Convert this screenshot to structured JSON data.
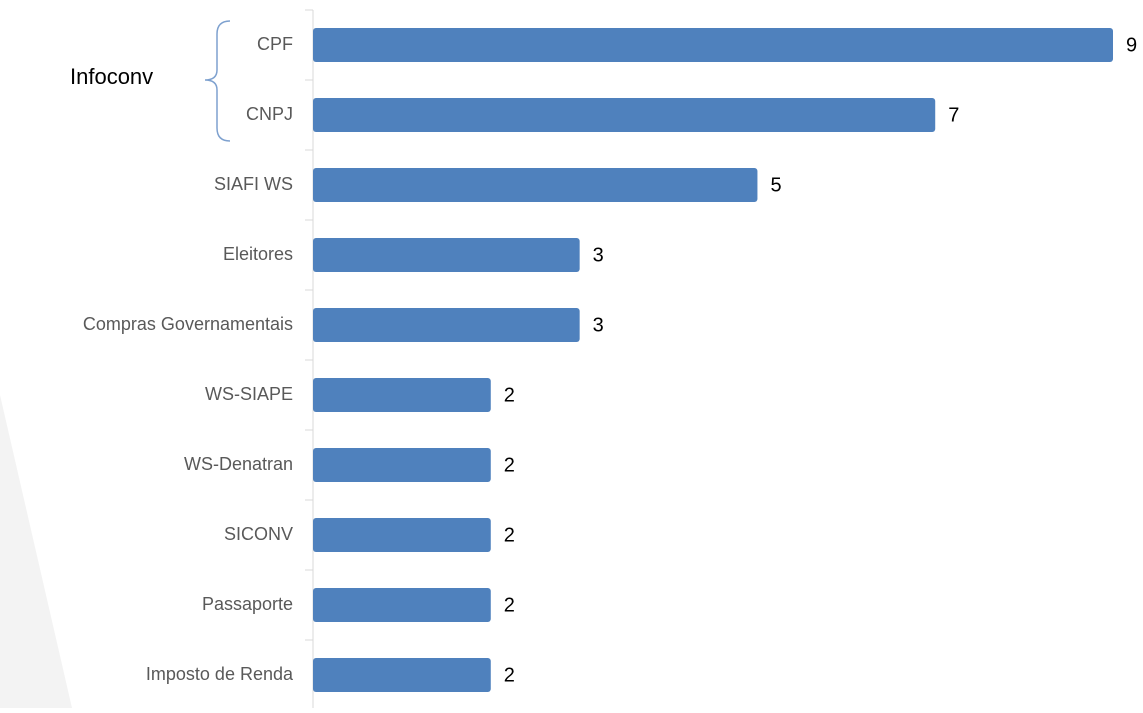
{
  "chart_data": {
    "type": "bar",
    "orientation": "horizontal",
    "categories": [
      "CPF",
      "CNPJ",
      "SIAFI WS",
      "Eleitores",
      "Compras Governamentais",
      "WS-SIAPE",
      "WS-Denatran",
      "SICONV",
      "Passaporte",
      "Imposto de Renda"
    ],
    "values": [
      9,
      7,
      5,
      3,
      3,
      2,
      2,
      2,
      2,
      2
    ],
    "color": "#4f81bd",
    "annotation": "Infoconv"
  }
}
